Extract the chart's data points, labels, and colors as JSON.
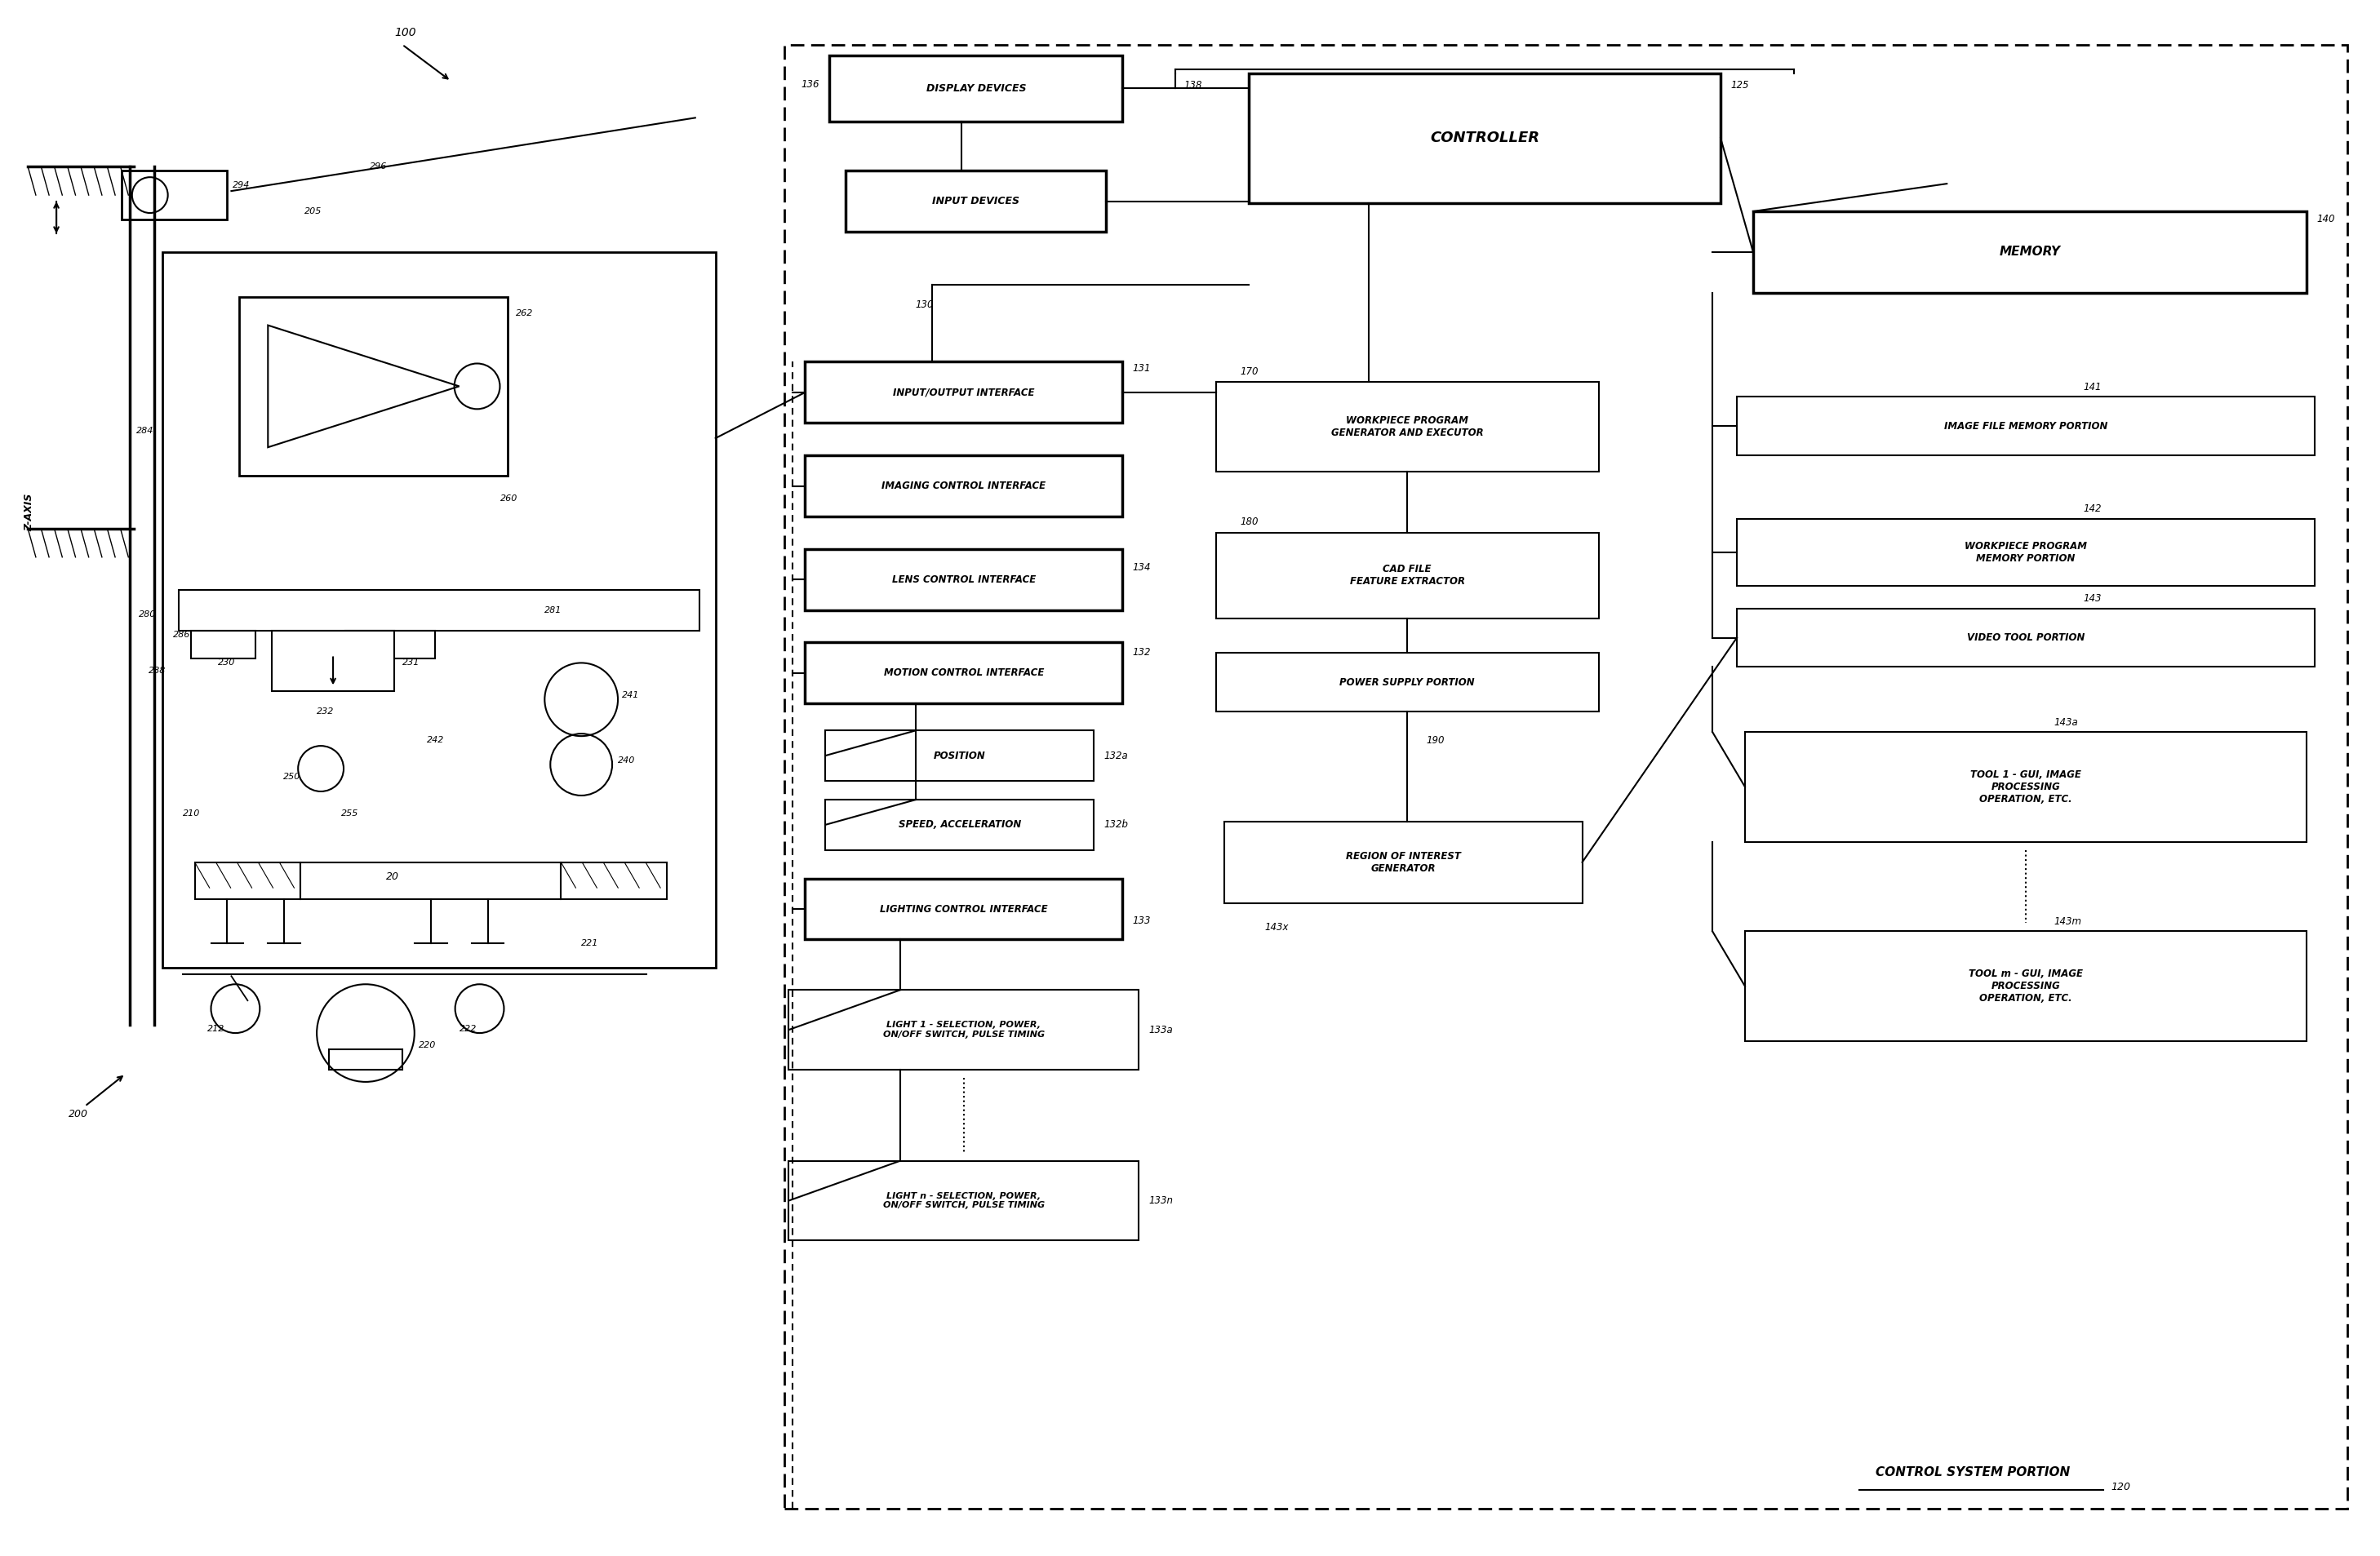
{
  "fig_w": 29.16,
  "fig_h": 19.07,
  "t_display": "DISPLAY DEVICES",
  "t_input": "INPUT DEVICES",
  "t_controller": "CONTROLLER",
  "t_memory": "MEMORY",
  "t_io": "INPUT/OUTPUT INTERFACE",
  "t_imaging": "IMAGING CONTROL INTERFACE",
  "t_lens": "LENS CONTROL INTERFACE",
  "t_motion": "MOTION CONTROL INTERFACE",
  "t_position": "POSITION",
  "t_speed": "SPEED, ACCELERATION",
  "t_lighting": "LIGHTING CONTROL INTERFACE",
  "t_light1": "LIGHT 1 - SELECTION, POWER,\nON/OFF SWITCH, PULSE TIMING",
  "t_lightn": "LIGHT n - SELECTION, POWER,\nON/OFF SWITCH, PULSE TIMING",
  "t_workpiece": "WORKPIECE PROGRAM\nGENERATOR AND EXECUTOR",
  "t_cad": "CAD FILE\nFEATURE EXTRACTOR",
  "t_power": "POWER SUPPLY PORTION",
  "t_roi": "REGION OF INTEREST\nGENERATOR",
  "t_imgfile": "IMAGE FILE MEMORY PORTION",
  "t_wpmem": "WORKPIECE PROGRAM\nMEMORY PORTION",
  "t_video": "VIDEO TOOL PORTION",
  "t_tool1": "TOOL 1 - GUI, IMAGE\nPROCESSING\nOPERATION, ETC.",
  "t_toolm": "TOOL m - GUI, IMAGE\nPROCESSING\nOPERATION, ETC.",
  "t_control_system": "CONTROL SYSTEM PORTION",
  "t_zaxis": "Z-AXIS",
  "n100": "100",
  "n200": "200",
  "n20": "20",
  "n120": "120",
  "n125": "125",
  "n130": "130",
  "n131": "131",
  "n132": "132",
  "n132a": "132a",
  "n132b": "132b",
  "n133": "133",
  "n133a": "133a",
  "n133n": "133n",
  "n134": "134",
  "n136": "136",
  "n138": "138",
  "n140": "140",
  "n141": "141",
  "n142": "142",
  "n143": "143",
  "n143a": "143a",
  "n143m": "143m",
  "n143x": "143x",
  "n170": "170",
  "n180": "180",
  "n190": "190",
  "n205": "205",
  "n210": "210",
  "n212": "212",
  "n220": "220",
  "n221": "221",
  "n222": "222",
  "n230": "230",
  "n231": "231",
  "n232": "232",
  "n240": "240",
  "n241": "241",
  "n242": "242",
  "n250": "250",
  "n255": "255",
  "n260": "260",
  "n262": "262",
  "n280": "280",
  "n281": "281",
  "n284": "284",
  "n286": "286",
  "n288": "288",
  "n294": "294",
  "n296": "296"
}
